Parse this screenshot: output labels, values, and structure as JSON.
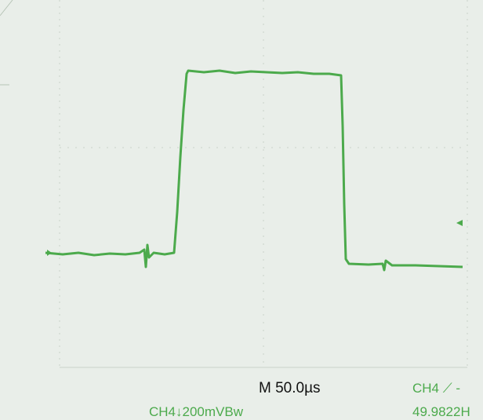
{
  "screen": {
    "timebase": "M 50.0µs",
    "channel_scale": "CH4↓200mVBw",
    "trigger": "CH4 ⟋ -",
    "frequency": "49.9822H"
  }
}
